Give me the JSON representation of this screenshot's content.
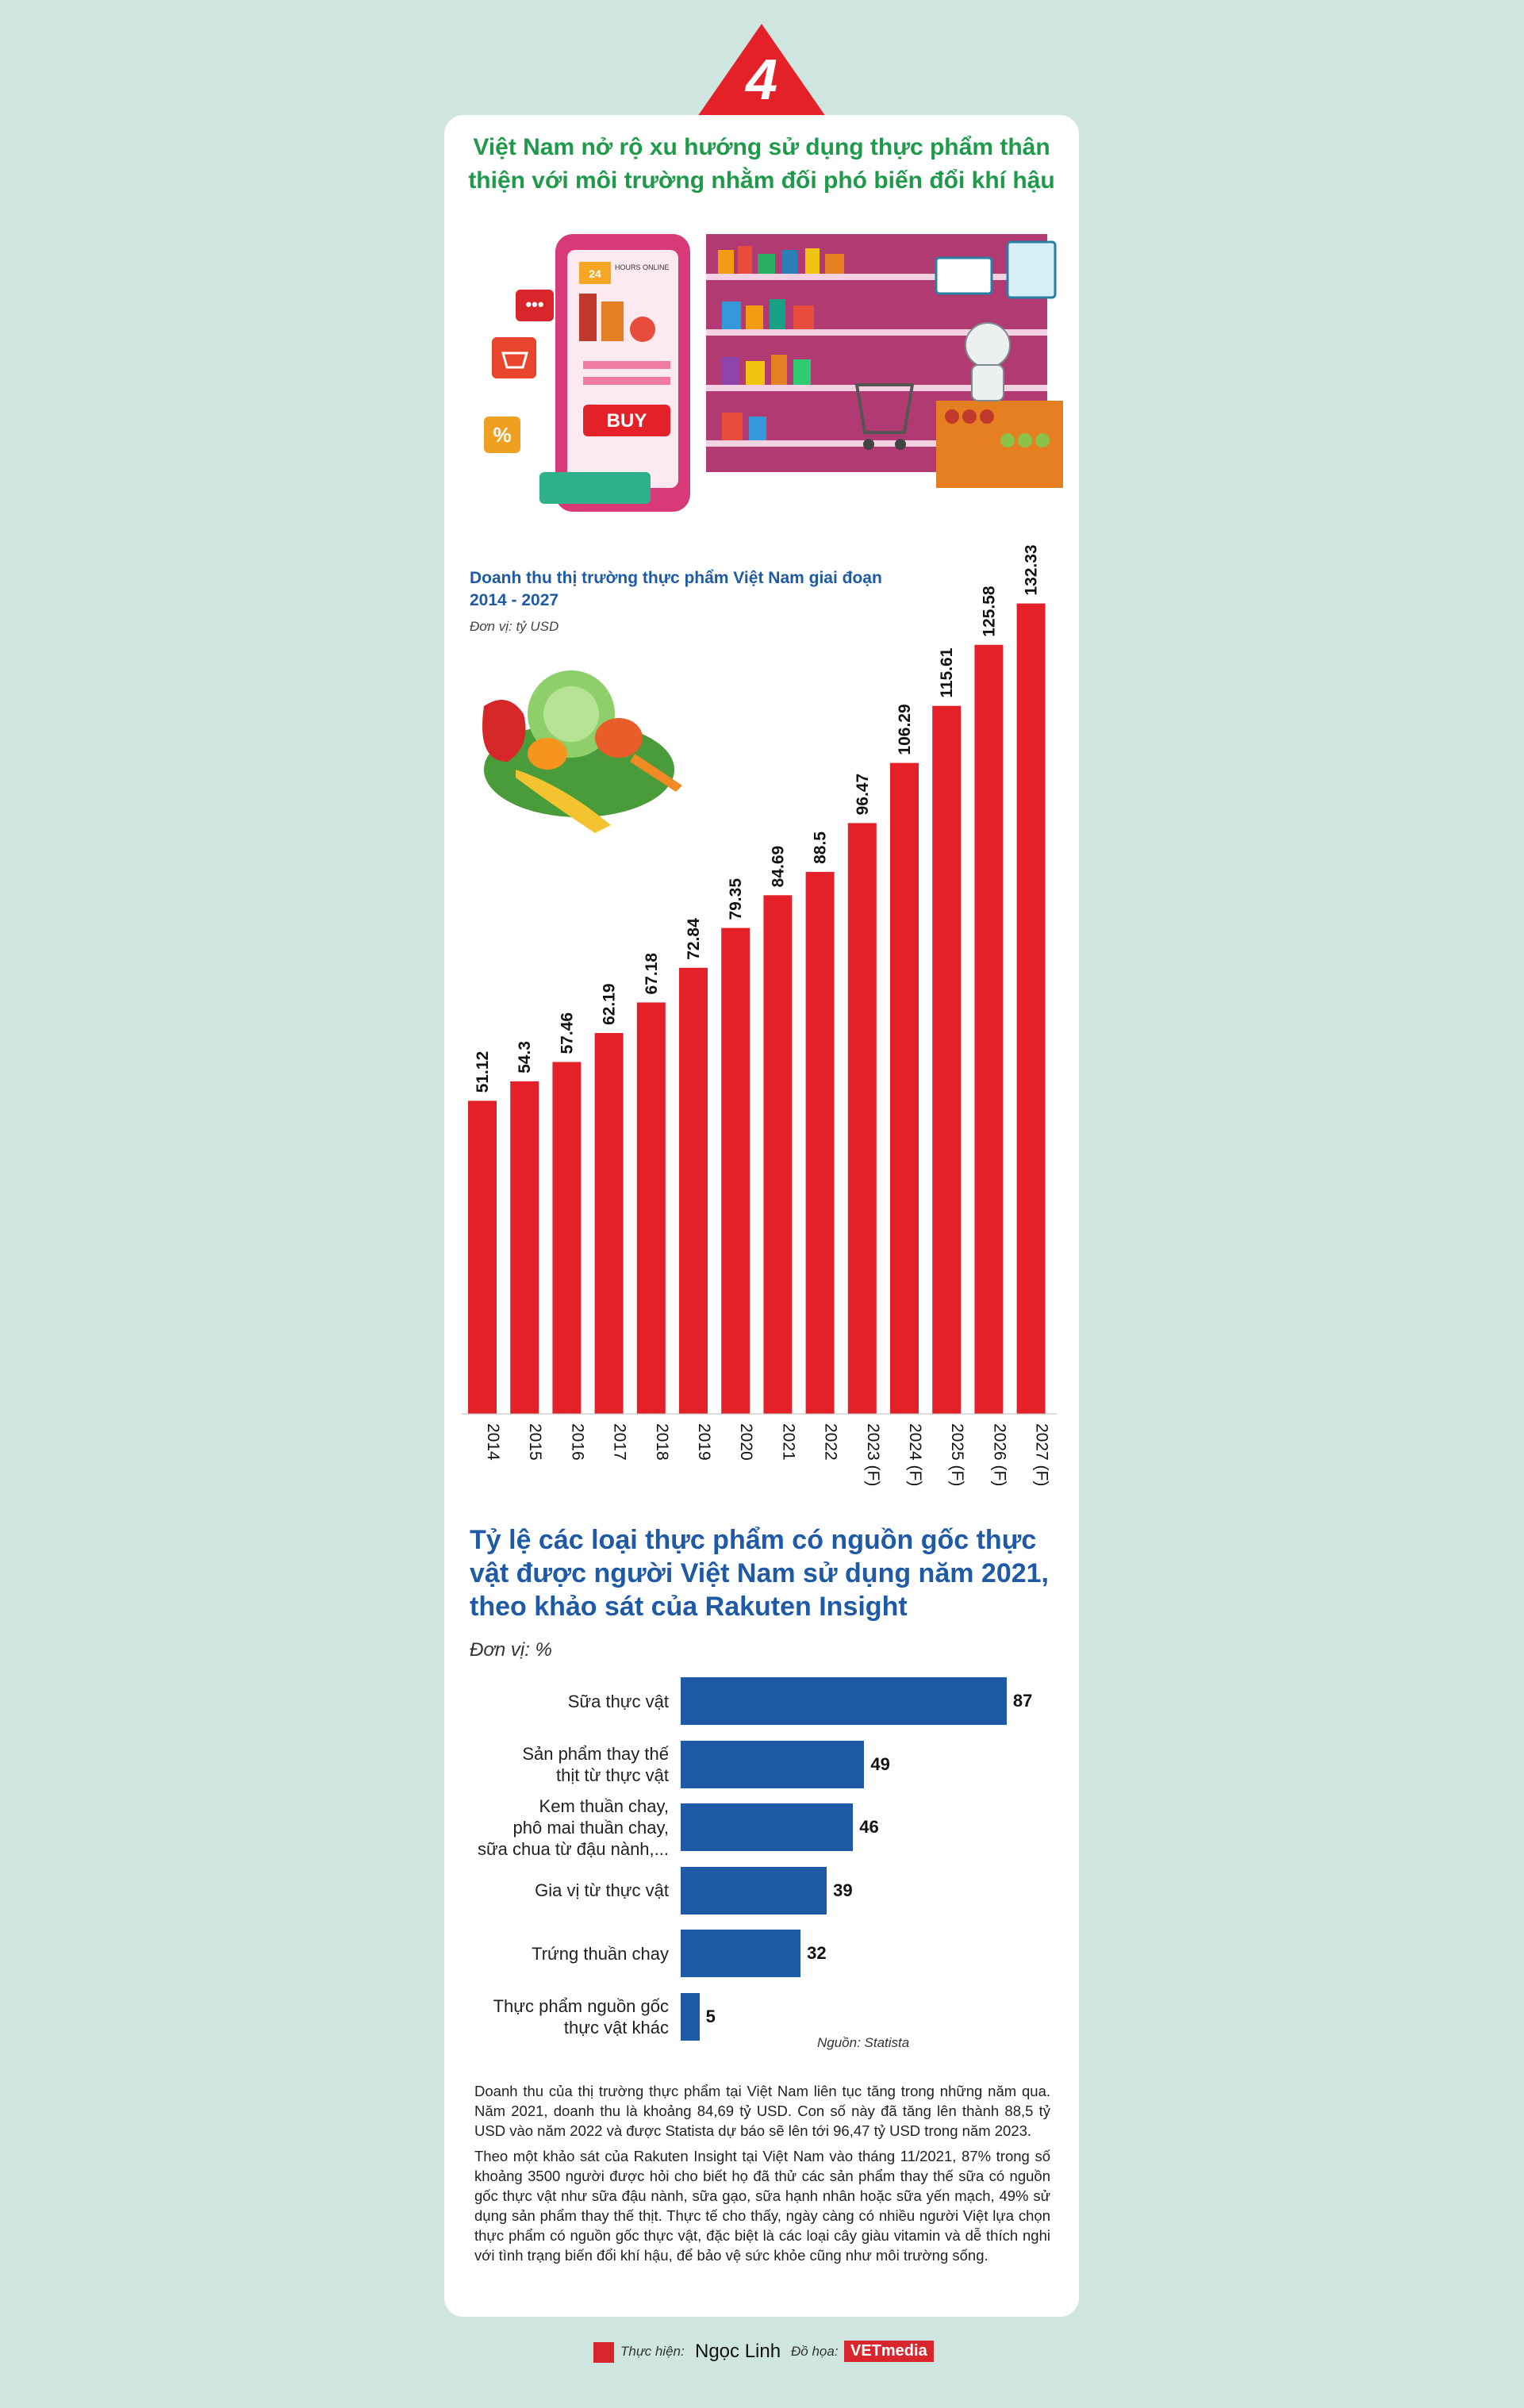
{
  "badge": {
    "number": "4"
  },
  "main_title": "Việt Nam nở rộ xu hướng sử dụng thực phẩm thân thiện với môi trường nhằm đối phó biến đổi khí hậu",
  "illustration": {
    "phone_sign_top": "24",
    "phone_sign": "HOURS ONLINE",
    "buy_label": "BUY",
    "percent_icon": "%"
  },
  "chart1": {
    "title": "Doanh thu thị trường thực phẩm Việt Nam giai đoạn 2014 - 2027",
    "unit": "Đơn vị: tỷ USD"
  },
  "chart2": {
    "title": "Tỷ lệ các loại thực phẩm có nguồn gốc thực vật được người Việt Nam sử dụng năm 2021, theo khảo sát của Rakuten Insight",
    "unit": "Đơn vị: %",
    "source": "Nguồn: Statista"
  },
  "chart_data": [
    {
      "type": "bar",
      "orientation": "vertical",
      "title": "Doanh thu thị trường thực phẩm Việt Nam giai đoạn 2014 - 2027",
      "ylabel": "Đơn vị: tỷ USD",
      "categories": [
        "2014",
        "2015",
        "2016",
        "2017",
        "2018",
        "2019",
        "2020",
        "2021",
        "2022",
        "2023 (F)",
        "2024 (F)",
        "2025 (F)",
        "2026 (F)",
        "2027 (F)"
      ],
      "values": [
        51.12,
        54.3,
        57.46,
        62.19,
        67.18,
        72.84,
        79.35,
        84.69,
        88.5,
        96.47,
        106.29,
        115.61,
        125.58,
        132.33
      ],
      "value_labels": [
        "51.12",
        "54.3",
        "57.46",
        "62.19",
        "67.18",
        "72.84",
        "79.35",
        "84.69",
        "88.5",
        "96.47",
        "106.29",
        "115.61",
        "125.58",
        "132.33"
      ],
      "ylim": [
        0,
        135
      ],
      "grid": false,
      "color": "#e42129"
    },
    {
      "type": "bar",
      "orientation": "horizontal",
      "title": "Tỷ lệ các loại thực phẩm có nguồn gốc thực vật được người Việt Nam sử dụng năm 2021, theo khảo sát của Rakuten Insight",
      "xlabel": "Đơn vị: %",
      "categories": [
        "Sữa thực vật",
        "Sản phẩm thay thế\nthịt từ thực vật",
        "Kem thuần chay,\nphô mai thuần chay,\nsữa chua từ đậu nành,...",
        "Gia vị từ thực vật",
        "Trứng thuần chay",
        "Thực phẩm nguồn gốc\nthực vật khác"
      ],
      "values": [
        87,
        49,
        46,
        39,
        32,
        5
      ],
      "xlim": [
        0,
        90
      ],
      "grid": false,
      "color": "#1f5aa6"
    }
  ],
  "paragraphs": [
    "Doanh thu của thị trường thực phẩm tại Việt Nam liên tục tăng trong những năm qua. Năm 2021, doanh thu là khoảng 84,69 tỷ USD. Con số này đã tăng lên thành 88,5 tỷ USD vào năm 2022 và được Statista dự báo sẽ lên tới 96,47 tỷ USD trong năm 2023.",
    "Theo một khảo sát của Rakuten Insight tại Việt Nam vào tháng 11/2021, 87% trong số khoảng 3500 người được hỏi cho biết họ đã thử các sản phẩm thay thế sữa có nguồn gốc thực vật như sữa đậu nành, sữa gạo, sữa hạnh nhân hoặc sữa yến mạch, 49% sử dụng sản phẩm thay thế thịt. Thực tế cho thấy, ngày càng có nhiều người Việt lựa chọn thực phẩm có nguồn gốc thực vật, đặc biệt là các loại cây giàu vitamin và dễ thích nghi với tình trạng biến đổi khí hậu, để bảo vệ sức khỏe cũng như môi trường sống."
  ],
  "credits": {
    "author_label": "Thực hiện:",
    "author": "Ngọc Linh",
    "design_label": "Đồ họa:",
    "design_logo": "VETmedia"
  }
}
